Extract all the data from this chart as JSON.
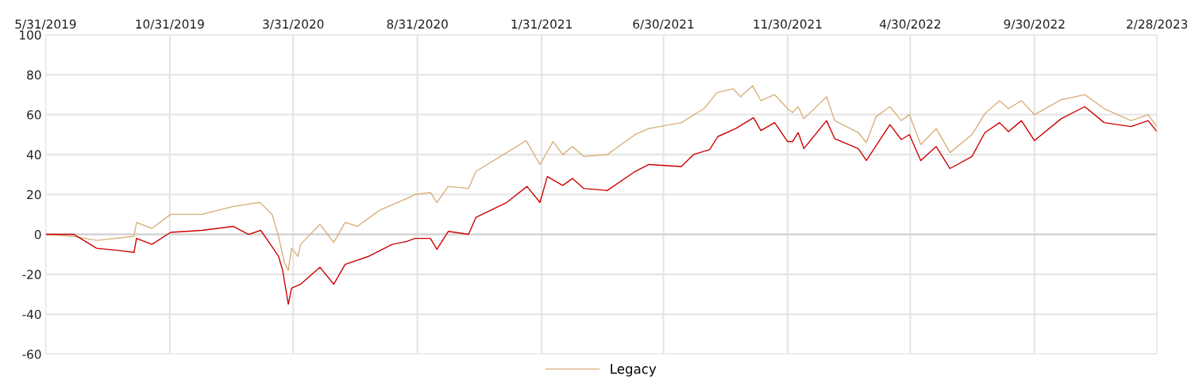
{
  "chart_data": {
    "type": "line",
    "xlim": [
      "2019-05-31",
      "2023-02-28"
    ],
    "xticks": [
      {
        "value": "2019-05-31",
        "label": "5/31/2019"
      },
      {
        "value": "2019-10-31",
        "label": "10/31/2019"
      },
      {
        "value": "2020-03-31",
        "label": "3/31/2020"
      },
      {
        "value": "2020-08-31",
        "label": "8/31/2020"
      },
      {
        "value": "2021-01-31",
        "label": "1/31/2021"
      },
      {
        "value": "2021-06-30",
        "label": "6/30/2021"
      },
      {
        "value": "2021-11-30",
        "label": "11/30/2021"
      },
      {
        "value": "2022-04-30",
        "label": "4/30/2022"
      },
      {
        "value": "2022-09-30",
        "label": "9/30/2022"
      },
      {
        "value": "2023-02-28",
        "label": "2/28/2023"
      }
    ],
    "ylim": [
      -60,
      100
    ],
    "yticks": [
      -60,
      -40,
      -20,
      0,
      20,
      40,
      60,
      80,
      100
    ],
    "grid": true,
    "legend": "bottom",
    "marker": "none",
    "line_style": "solid",
    "series": [
      {
        "name": "Legacy",
        "color": "#d8b07a",
        "x": [
          "2019-05-31",
          "2019-07-05",
          "2019-08-02",
          "2019-09-17",
          "2019-09-20",
          "2019-10-09",
          "2019-11-01",
          "2019-12-09",
          "2020-01-17",
          "2020-02-19",
          "2020-03-05",
          "2020-03-13",
          "2020-03-20",
          "2020-03-25",
          "2020-03-29",
          "2020-04-06",
          "2020-04-09",
          "2020-05-03",
          "2020-05-20",
          "2020-06-03",
          "2020-06-18",
          "2020-07-15",
          "2020-08-18",
          "2020-08-28",
          "2020-09-16",
          "2020-09-24",
          "2020-10-08",
          "2020-11-02",
          "2020-11-11",
          "2020-12-19",
          "2021-01-12",
          "2021-01-29",
          "2021-02-14",
          "2021-02-26",
          "2021-03-10",
          "2021-03-24",
          "2021-04-22",
          "2021-05-26",
          "2021-06-12",
          "2021-07-22",
          "2021-08-19",
          "2021-09-04",
          "2021-09-24",
          "2021-10-03",
          "2021-10-18",
          "2021-10-28",
          "2021-11-14",
          "2021-11-30",
          "2021-12-06",
          "2021-12-13",
          "2021-12-20",
          "2022-01-17",
          "2022-01-27",
          "2022-02-25",
          "2022-03-07",
          "2022-03-19",
          "2022-04-05",
          "2022-04-19",
          "2022-04-29",
          "2022-05-13",
          "2022-06-01",
          "2022-06-18",
          "2022-07-15",
          "2022-07-31",
          "2022-08-18",
          "2022-08-29",
          "2022-09-14",
          "2022-09-30",
          "2022-11-02",
          "2022-12-01",
          "2022-12-25",
          "2023-01-27",
          "2023-02-17",
          "2023-02-28"
        ],
        "values": [
          0,
          -1,
          -3,
          -1,
          6,
          3,
          10,
          10,
          14,
          16,
          10,
          -1,
          -14,
          -18,
          -7,
          -11,
          -5,
          5,
          -4,
          6,
          4,
          12,
          18,
          20,
          21,
          16,
          24,
          23,
          31.5,
          41,
          47,
          35,
          46.5,
          40,
          44,
          39,
          40,
          50,
          53,
          56,
          63,
          71,
          73,
          69,
          74.5,
          67,
          70,
          63,
          61,
          64,
          58,
          69,
          57,
          51,
          46,
          59,
          64,
          57,
          60,
          45,
          53,
          41,
          50,
          60.5,
          67,
          63,
          67,
          60,
          67.5,
          70,
          63,
          57,
          60,
          54
        ]
      },
      {
        "color": "#cc0000",
        "x": [
          "2019-05-31",
          "2019-07-05",
          "2019-08-02",
          "2019-08-28",
          "2019-09-17",
          "2019-09-20",
          "2019-10-09",
          "2019-11-01",
          "2019-12-09",
          "2020-01-17",
          "2020-02-05",
          "2020-02-20",
          "2020-03-03",
          "2020-03-13",
          "2020-03-18",
          "2020-03-25",
          "2020-03-29",
          "2020-04-09",
          "2020-05-03",
          "2020-05-20",
          "2020-06-03",
          "2020-07-02",
          "2020-07-31",
          "2020-08-18",
          "2020-08-28",
          "2020-09-16",
          "2020-09-24",
          "2020-10-08",
          "2020-11-02",
          "2020-11-11",
          "2020-12-19",
          "2021-01-13",
          "2021-01-29",
          "2021-02-07",
          "2021-02-26",
          "2021-03-10",
          "2021-03-24",
          "2021-04-22",
          "2021-05-26",
          "2021-06-12",
          "2021-07-22",
          "2021-08-06",
          "2021-08-26",
          "2021-09-05",
          "2021-09-27",
          "2021-10-19",
          "2021-10-28",
          "2021-11-14",
          "2021-11-30",
          "2021-12-06",
          "2021-12-13",
          "2021-12-20",
          "2022-01-17",
          "2022-01-27",
          "2022-02-25",
          "2022-03-07",
          "2022-04-05",
          "2022-04-19",
          "2022-04-29",
          "2022-05-13",
          "2022-06-01",
          "2022-06-18",
          "2022-07-15",
          "2022-07-31",
          "2022-08-18",
          "2022-08-29",
          "2022-09-14",
          "2022-09-30",
          "2022-11-02",
          "2022-12-01",
          "2022-12-25",
          "2023-01-27",
          "2023-02-17",
          "2023-02-28"
        ],
        "values": [
          0,
          0,
          -7,
          -8,
          -9,
          -2,
          -5,
          1,
          2,
          4,
          0,
          2,
          -5,
          -11,
          -18,
          -35,
          -27,
          -25,
          -16.5,
          -25,
          -15,
          -11,
          -5,
          -3.5,
          -2,
          -2,
          -7.5,
          1.5,
          0,
          8.5,
          16,
          24,
          16,
          29,
          24.5,
          28,
          23,
          22,
          31.5,
          35,
          34,
          40,
          42.5,
          49,
          53,
          58.5,
          52,
          56,
          46.5,
          46.5,
          51,
          43,
          57,
          48,
          43,
          37,
          55,
          47.5,
          50,
          37,
          44,
          33,
          39,
          51,
          56,
          51.5,
          57,
          47,
          58,
          64,
          56,
          54,
          57,
          51.5
        ]
      }
    ]
  }
}
